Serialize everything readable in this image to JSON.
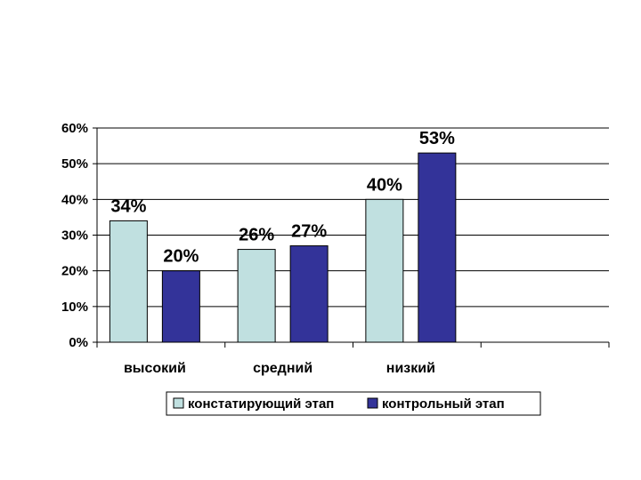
{
  "chart_data": {
    "type": "bar",
    "categories": [
      "высокий",
      "средний",
      "низкий"
    ],
    "series": [
      {
        "name": "констатирующий этап",
        "values": [
          34,
          26,
          40
        ],
        "color": "#c0e0e0"
      },
      {
        "name": "контрольный этап",
        "values": [
          20,
          27,
          53
        ],
        "color": "#333399"
      }
    ],
    "ylim": [
      0,
      60
    ],
    "yticks": [
      0,
      10,
      20,
      30,
      40,
      50,
      60
    ],
    "tick_format": "{v}%",
    "data_labels": [
      [
        "34%",
        "26%",
        "40%"
      ],
      [
        "20%",
        "27%",
        "53%"
      ]
    ],
    "grid": true,
    "legend_position": "bottom",
    "title": "",
    "xlabel": "",
    "ylabel": ""
  }
}
